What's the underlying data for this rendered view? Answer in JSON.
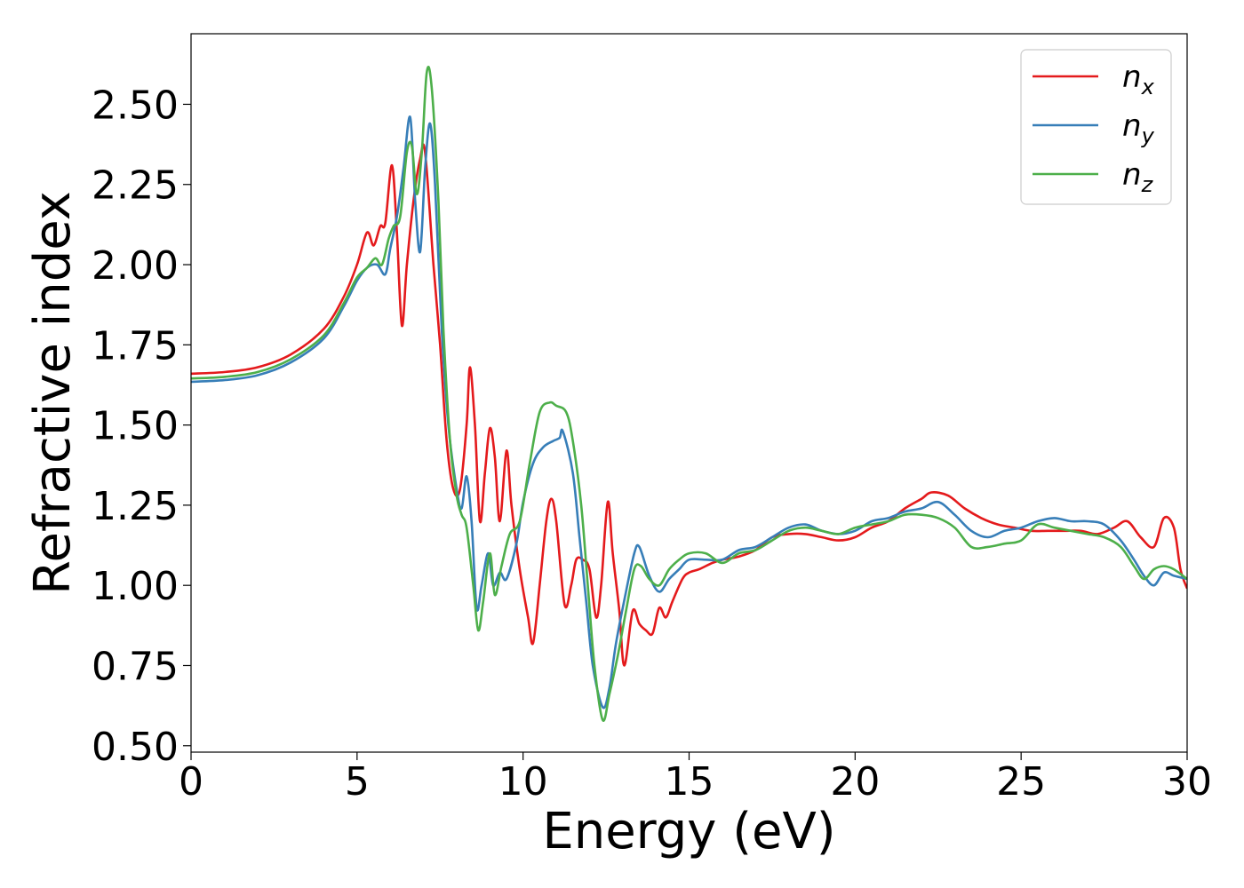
{
  "chart_data": {
    "type": "line",
    "xlabel": "Energy (eV)",
    "ylabel": "Refractive index",
    "xlim": [
      0,
      30
    ],
    "ylim": [
      0.48,
      2.72
    ],
    "x_ticks": [
      0,
      5,
      10,
      15,
      20,
      25,
      30
    ],
    "x_tick_labels": [
      "0",
      "5",
      "10",
      "15",
      "20",
      "25",
      "30"
    ],
    "y_ticks": [
      0.5,
      0.75,
      1.0,
      1.25,
      1.5,
      1.75,
      2.0,
      2.25,
      2.5
    ],
    "y_tick_labels": [
      "0.50",
      "0.75",
      "1.00",
      "1.25",
      "1.50",
      "1.75",
      "2.00",
      "2.25",
      "2.50"
    ],
    "grid": false,
    "legend_position": "top-right",
    "series": [
      {
        "name": "n_x",
        "label_main": "n",
        "label_sub": "x",
        "color": "#e41a1c",
        "points": [
          [
            0,
            1.66
          ],
          [
            1,
            1.665
          ],
          [
            2,
            1.68
          ],
          [
            3,
            1.72
          ],
          [
            4,
            1.8
          ],
          [
            4.6,
            1.9
          ],
          [
            5,
            2.0
          ],
          [
            5.3,
            2.1
          ],
          [
            5.5,
            2.06
          ],
          [
            5.7,
            2.12
          ],
          [
            5.85,
            2.13
          ],
          [
            6.05,
            2.31
          ],
          [
            6.2,
            2.1
          ],
          [
            6.35,
            1.81
          ],
          [
            6.5,
            2.0
          ],
          [
            6.7,
            2.2
          ],
          [
            6.9,
            2.33
          ],
          [
            7.05,
            2.35
          ],
          [
            7.3,
            2.0
          ],
          [
            7.5,
            1.75
          ],
          [
            7.7,
            1.45
          ],
          [
            7.9,
            1.3
          ],
          [
            8.1,
            1.3
          ],
          [
            8.3,
            1.5
          ],
          [
            8.4,
            1.68
          ],
          [
            8.55,
            1.5
          ],
          [
            8.7,
            1.2
          ],
          [
            8.85,
            1.35
          ],
          [
            9.0,
            1.49
          ],
          [
            9.15,
            1.4
          ],
          [
            9.3,
            1.2
          ],
          [
            9.5,
            1.42
          ],
          [
            9.65,
            1.25
          ],
          [
            9.9,
            1.05
          ],
          [
            10.15,
            0.9
          ],
          [
            10.3,
            0.82
          ],
          [
            10.5,
            1.0
          ],
          [
            10.7,
            1.2
          ],
          [
            10.85,
            1.27
          ],
          [
            11.0,
            1.2
          ],
          [
            11.25,
            0.94
          ],
          [
            11.45,
            1.0
          ],
          [
            11.6,
            1.08
          ],
          [
            11.8,
            1.08
          ],
          [
            12.0,
            1.05
          ],
          [
            12.2,
            0.9
          ],
          [
            12.35,
            1.0
          ],
          [
            12.55,
            1.26
          ],
          [
            12.7,
            1.1
          ],
          [
            12.9,
            0.92
          ],
          [
            13.05,
            0.75
          ],
          [
            13.3,
            0.92
          ],
          [
            13.5,
            0.88
          ],
          [
            13.7,
            0.86
          ],
          [
            13.9,
            0.85
          ],
          [
            14.1,
            0.93
          ],
          [
            14.3,
            0.9
          ],
          [
            14.5,
            0.95
          ],
          [
            14.8,
            1.02
          ],
          [
            15.0,
            1.04
          ],
          [
            15.3,
            1.05
          ],
          [
            15.7,
            1.07
          ],
          [
            16.0,
            1.08
          ],
          [
            16.5,
            1.09
          ],
          [
            17.0,
            1.11
          ],
          [
            17.5,
            1.15
          ],
          [
            18.0,
            1.16
          ],
          [
            18.5,
            1.16
          ],
          [
            19.0,
            1.15
          ],
          [
            19.5,
            1.14
          ],
          [
            20.0,
            1.15
          ],
          [
            20.5,
            1.18
          ],
          [
            21.0,
            1.2
          ],
          [
            21.5,
            1.24
          ],
          [
            22.0,
            1.27
          ],
          [
            22.3,
            1.29
          ],
          [
            22.8,
            1.28
          ],
          [
            23.3,
            1.24
          ],
          [
            23.8,
            1.21
          ],
          [
            24.3,
            1.19
          ],
          [
            24.8,
            1.18
          ],
          [
            25.3,
            1.17
          ],
          [
            25.8,
            1.17
          ],
          [
            26.3,
            1.17
          ],
          [
            26.8,
            1.17
          ],
          [
            27.3,
            1.16
          ],
          [
            27.8,
            1.18
          ],
          [
            28.2,
            1.2
          ],
          [
            28.6,
            1.15
          ],
          [
            29.0,
            1.12
          ],
          [
            29.3,
            1.21
          ],
          [
            29.6,
            1.18
          ],
          [
            29.8,
            1.05
          ],
          [
            30.0,
            0.99
          ]
        ]
      },
      {
        "name": "n_y",
        "label_main": "n",
        "label_sub": "y",
        "color": "#377eb8",
        "points": [
          [
            0,
            1.635
          ],
          [
            1,
            1.64
          ],
          [
            2,
            1.655
          ],
          [
            3,
            1.695
          ],
          [
            4,
            1.77
          ],
          [
            4.6,
            1.87
          ],
          [
            5,
            1.95
          ],
          [
            5.3,
            1.99
          ],
          [
            5.6,
            2.0
          ],
          [
            5.85,
            1.97
          ],
          [
            6.0,
            2.05
          ],
          [
            6.2,
            2.15
          ],
          [
            6.4,
            2.3
          ],
          [
            6.6,
            2.46
          ],
          [
            6.75,
            2.2
          ],
          [
            6.9,
            2.04
          ],
          [
            7.05,
            2.3
          ],
          [
            7.2,
            2.44
          ],
          [
            7.35,
            2.25
          ],
          [
            7.55,
            1.8
          ],
          [
            7.75,
            1.5
          ],
          [
            8.0,
            1.3
          ],
          [
            8.15,
            1.24
          ],
          [
            8.3,
            1.34
          ],
          [
            8.45,
            1.2
          ],
          [
            8.6,
            0.93
          ],
          [
            8.75,
            1.0
          ],
          [
            8.95,
            1.1
          ],
          [
            9.1,
            1.0
          ],
          [
            9.3,
            1.04
          ],
          [
            9.5,
            1.02
          ],
          [
            9.8,
            1.13
          ],
          [
            10.0,
            1.26
          ],
          [
            10.3,
            1.38
          ],
          [
            10.6,
            1.43
          ],
          [
            10.9,
            1.45
          ],
          [
            11.1,
            1.46
          ],
          [
            11.2,
            1.48
          ],
          [
            11.5,
            1.35
          ],
          [
            11.7,
            1.15
          ],
          [
            11.9,
            0.95
          ],
          [
            12.1,
            0.75
          ],
          [
            12.4,
            0.62
          ],
          [
            12.6,
            0.68
          ],
          [
            12.8,
            0.82
          ],
          [
            13.1,
            0.98
          ],
          [
            13.35,
            1.1
          ],
          [
            13.5,
            1.12
          ],
          [
            13.8,
            1.03
          ],
          [
            14.1,
            0.98
          ],
          [
            14.4,
            1.02
          ],
          [
            14.7,
            1.05
          ],
          [
            15.0,
            1.08
          ],
          [
            15.5,
            1.08
          ],
          [
            16.0,
            1.08
          ],
          [
            16.5,
            1.11
          ],
          [
            17.0,
            1.12
          ],
          [
            17.5,
            1.15
          ],
          [
            18.0,
            1.18
          ],
          [
            18.5,
            1.19
          ],
          [
            19.0,
            1.17
          ],
          [
            19.5,
            1.16
          ],
          [
            20.0,
            1.17
          ],
          [
            20.5,
            1.2
          ],
          [
            21.0,
            1.21
          ],
          [
            21.5,
            1.23
          ],
          [
            22.0,
            1.24
          ],
          [
            22.5,
            1.26
          ],
          [
            23.0,
            1.22
          ],
          [
            23.5,
            1.17
          ],
          [
            24.0,
            1.15
          ],
          [
            24.5,
            1.17
          ],
          [
            25.0,
            1.18
          ],
          [
            25.5,
            1.2
          ],
          [
            26.0,
            1.21
          ],
          [
            26.5,
            1.2
          ],
          [
            27.0,
            1.2
          ],
          [
            27.5,
            1.19
          ],
          [
            28.0,
            1.14
          ],
          [
            28.4,
            1.08
          ],
          [
            28.7,
            1.03
          ],
          [
            29.0,
            1.0
          ],
          [
            29.3,
            1.04
          ],
          [
            29.6,
            1.03
          ],
          [
            30.0,
            1.02
          ]
        ]
      },
      {
        "name": "n_z",
        "label_main": "n",
        "label_sub": "z",
        "color": "#4daf4a",
        "points": [
          [
            0,
            1.645
          ],
          [
            1,
            1.65
          ],
          [
            2,
            1.665
          ],
          [
            3,
            1.705
          ],
          [
            4,
            1.78
          ],
          [
            4.6,
            1.88
          ],
          [
            5,
            1.96
          ],
          [
            5.3,
            1.99
          ],
          [
            5.55,
            2.02
          ],
          [
            5.75,
            2.0
          ],
          [
            5.95,
            2.08
          ],
          [
            6.1,
            2.12
          ],
          [
            6.3,
            2.15
          ],
          [
            6.5,
            2.35
          ],
          [
            6.65,
            2.37
          ],
          [
            6.8,
            2.22
          ],
          [
            6.95,
            2.35
          ],
          [
            7.1,
            2.6
          ],
          [
            7.25,
            2.55
          ],
          [
            7.45,
            2.2
          ],
          [
            7.6,
            1.8
          ],
          [
            7.8,
            1.45
          ],
          [
            8.0,
            1.28
          ],
          [
            8.15,
            1.22
          ],
          [
            8.3,
            1.18
          ],
          [
            8.5,
            1.0
          ],
          [
            8.65,
            0.86
          ],
          [
            8.8,
            0.95
          ],
          [
            9.0,
            1.1
          ],
          [
            9.15,
            0.97
          ],
          [
            9.35,
            1.06
          ],
          [
            9.6,
            1.16
          ],
          [
            9.9,
            1.2
          ],
          [
            10.2,
            1.38
          ],
          [
            10.5,
            1.54
          ],
          [
            10.8,
            1.57
          ],
          [
            11.0,
            1.56
          ],
          [
            11.3,
            1.54
          ],
          [
            11.5,
            1.45
          ],
          [
            11.75,
            1.25
          ],
          [
            11.95,
            1.0
          ],
          [
            12.15,
            0.75
          ],
          [
            12.4,
            0.58
          ],
          [
            12.6,
            0.66
          ],
          [
            12.85,
            0.78
          ],
          [
            13.1,
            0.92
          ],
          [
            13.35,
            1.05
          ],
          [
            13.55,
            1.06
          ],
          [
            13.8,
            1.02
          ],
          [
            14.1,
            1.0
          ],
          [
            14.4,
            1.05
          ],
          [
            14.7,
            1.08
          ],
          [
            15.0,
            1.1
          ],
          [
            15.5,
            1.1
          ],
          [
            16.0,
            1.07
          ],
          [
            16.5,
            1.1
          ],
          [
            17.0,
            1.11
          ],
          [
            17.5,
            1.14
          ],
          [
            18.0,
            1.17
          ],
          [
            18.5,
            1.18
          ],
          [
            19.0,
            1.17
          ],
          [
            19.5,
            1.16
          ],
          [
            20.0,
            1.18
          ],
          [
            20.5,
            1.19
          ],
          [
            21.0,
            1.2
          ],
          [
            21.5,
            1.22
          ],
          [
            22.0,
            1.22
          ],
          [
            22.5,
            1.21
          ],
          [
            23.0,
            1.18
          ],
          [
            23.5,
            1.12
          ],
          [
            24.0,
            1.12
          ],
          [
            24.5,
            1.13
          ],
          [
            25.0,
            1.14
          ],
          [
            25.5,
            1.19
          ],
          [
            26.0,
            1.18
          ],
          [
            26.5,
            1.17
          ],
          [
            27.0,
            1.16
          ],
          [
            27.5,
            1.15
          ],
          [
            28.0,
            1.12
          ],
          [
            28.4,
            1.06
          ],
          [
            28.7,
            1.02
          ],
          [
            29.0,
            1.05
          ],
          [
            29.3,
            1.06
          ],
          [
            29.6,
            1.05
          ],
          [
            30.0,
            1.02
          ]
        ]
      }
    ]
  }
}
